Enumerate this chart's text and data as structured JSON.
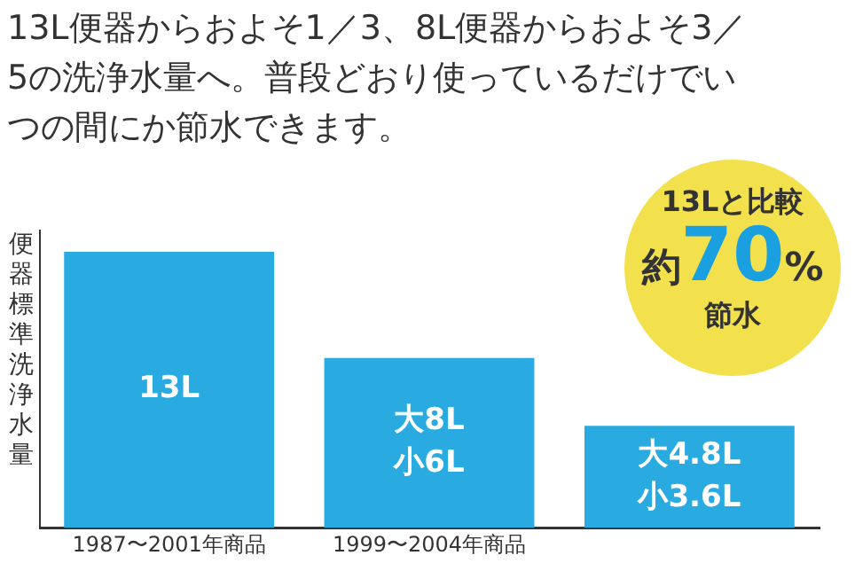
{
  "chart_data": {
    "type": "bar",
    "title": "13L便器からおよそ1／3、8L便器からおよそ3／5の洗浄水量へ。普段どおり使っているだけでいつの間にか節水できます。",
    "ylabel": "便器標準洗浄水量",
    "categories": [
      "1987〜2001年商品",
      "1999〜2004年商品",
      null
    ],
    "values": [
      13,
      8,
      4.8
    ],
    "value_labels": [
      "13L",
      "大8L 小6L",
      "大4.8L 小3.6L"
    ],
    "color": "#29abe2",
    "tick_labels": "x",
    "grid": false,
    "legend": false,
    "annotations": [
      "13Lと比較",
      "約70%",
      "節水"
    ]
  }
}
